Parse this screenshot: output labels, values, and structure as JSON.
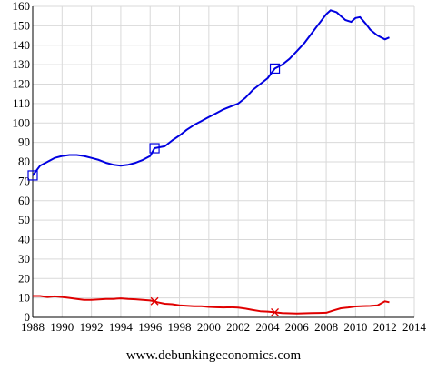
{
  "chart_data": {
    "type": "line",
    "xlim": [
      1988,
      2014
    ],
    "ylim": [
      0,
      160
    ],
    "x_ticks": [
      "1988",
      "1990",
      "1992",
      "1994",
      "1996",
      "1998",
      "2000",
      "2002",
      "2004",
      "2006",
      "2008",
      "2010",
      "2012",
      "2014"
    ],
    "y_ticks": [
      "0",
      "10",
      "20",
      "30",
      "40",
      "50",
      "60",
      "70",
      "80",
      "90",
      "100",
      "110",
      "120",
      "130",
      "140",
      "150",
      "160"
    ],
    "grid": true,
    "series": [
      {
        "color": "#0000e0",
        "marker": "square",
        "marker_x": [
          1988.0,
          1996.3,
          2004.5
        ],
        "x": [
          1988.0,
          1988.5,
          1989.0,
          1989.5,
          1990.0,
          1990.5,
          1991.0,
          1991.5,
          1992.0,
          1992.5,
          1993.0,
          1993.5,
          1994.0,
          1994.5,
          1995.0,
          1995.5,
          1996.0,
          1996.3,
          1997.0,
          1997.5,
          1998.0,
          1998.5,
          1999.0,
          1999.5,
          2000.0,
          2000.5,
          2001.0,
          2001.5,
          2002.0,
          2002.5,
          2003.0,
          2003.5,
          2004.0,
          2004.5,
          2005.0,
          2005.5,
          2006.0,
          2006.5,
          2007.0,
          2007.5,
          2008.0,
          2008.3,
          2008.7,
          2009.0,
          2009.3,
          2009.7,
          2010.0,
          2010.3,
          2010.7,
          2011.0,
          2011.5,
          2012.0,
          2012.3
        ],
        "values": [
          73,
          78,
          80,
          82,
          83,
          83.5,
          83.5,
          83,
          82,
          81,
          79.5,
          78.5,
          78,
          78.5,
          79.5,
          81,
          83,
          87,
          88,
          91,
          93.5,
          96.5,
          99,
          101,
          103,
          105,
          107,
          108.5,
          110,
          113,
          117,
          120,
          123,
          128,
          130,
          133,
          137,
          141,
          146,
          151,
          156,
          158,
          157,
          155,
          153,
          152,
          154,
          154.5,
          151,
          148,
          145,
          143,
          144
        ]
      },
      {
        "color": "#e00000",
        "marker": "x",
        "marker_x": [
          1996.3,
          2004.5
        ],
        "x": [
          1988.0,
          1988.5,
          1989.0,
          1989.5,
          1990.0,
          1990.5,
          1991.0,
          1991.5,
          1992.0,
          1992.5,
          1993.0,
          1993.5,
          1994.0,
          1994.5,
          1995.0,
          1995.5,
          1996.0,
          1996.3,
          1996.5,
          1997.0,
          1997.5,
          1998.0,
          1998.5,
          1999.0,
          1999.5,
          2000.0,
          2000.5,
          2001.0,
          2001.5,
          2002.0,
          2002.5,
          2003.0,
          2003.5,
          2004.0,
          2004.5,
          2005.0,
          2005.5,
          2006.0,
          2006.5,
          2007.0,
          2007.5,
          2008.0,
          2008.5,
          2009.0,
          2009.5,
          2010.0,
          2010.5,
          2011.0,
          2011.5,
          2012.0,
          2012.3
        ],
        "values": [
          11,
          11,
          10.5,
          10.8,
          10.5,
          10,
          9.5,
          9,
          9,
          9.2,
          9.5,
          9.5,
          9.8,
          9.5,
          9.3,
          9,
          8.7,
          8.3,
          7.8,
          7,
          6.8,
          6.2,
          6,
          5.7,
          5.7,
          5.4,
          5.2,
          5.1,
          5.2,
          5,
          4.5,
          3.8,
          3.2,
          3,
          2.6,
          2.2,
          2.1,
          2,
          2.1,
          2.2,
          2.3,
          2.4,
          3.6,
          4.7,
          5.1,
          5.6,
          5.8,
          5.9,
          6.2,
          8.3,
          7.8
        ]
      }
    ]
  },
  "footer": {
    "text": "www.debunkingeconomics.com"
  }
}
